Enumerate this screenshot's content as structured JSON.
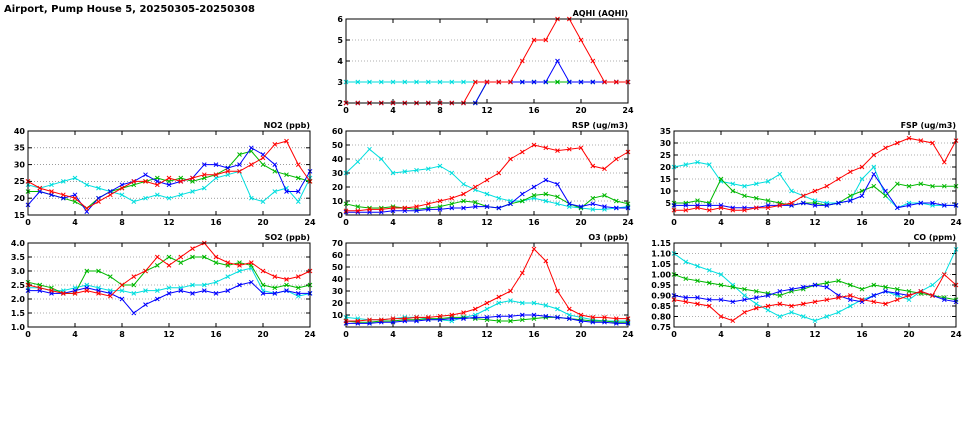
{
  "page_title": "Airport, Pump House 5, 20250305-20250308",
  "colors": {
    "red": "#ff0000",
    "green": "#00b800",
    "blue": "#0000ff",
    "cyan": "#00dede"
  },
  "chart_data": [
    {
      "id": "aqhi",
      "type": "line",
      "title": "AQHI (AQHI)",
      "x_start": 0,
      "x_end": 24,
      "x_ticks": [
        0,
        4,
        8,
        12,
        16,
        20,
        24
      ],
      "ylim": [
        2,
        6
      ],
      "y_ticks": [
        2,
        3,
        4,
        5,
        6
      ],
      "y_tick_labels": [
        "2",
        "3",
        "4",
        "5",
        "6"
      ],
      "grid": "horizontal-dotted",
      "legend": "none",
      "series": [
        {
          "name": "cyan",
          "color": "#00dede",
          "marker": "x",
          "values": [
            3,
            3,
            3,
            3,
            3,
            3,
            3,
            3,
            3,
            3,
            3,
            3,
            3,
            3,
            3,
            3,
            3,
            3,
            3,
            3,
            3,
            3,
            3,
            3,
            3
          ]
        },
        {
          "name": "green",
          "color": "#00b800",
          "marker": "x",
          "values": [
            2,
            2,
            2,
            2,
            2,
            2,
            2,
            2,
            2,
            2,
            2,
            2,
            3,
            3,
            3,
            3,
            3,
            3,
            3,
            3,
            3,
            3,
            3,
            3,
            3
          ]
        },
        {
          "name": "blue",
          "color": "#0000ff",
          "marker": "x",
          "values": [
            2,
            2,
            2,
            2,
            2,
            2,
            2,
            2,
            2,
            2,
            2,
            2,
            3,
            3,
            3,
            3,
            3,
            3,
            4,
            3,
            3,
            3,
            3,
            3,
            3
          ]
        },
        {
          "name": "red",
          "color": "#ff0000",
          "marker": "x",
          "values": [
            2,
            2,
            2,
            2,
            2,
            2,
            2,
            2,
            2,
            2,
            2,
            3,
            3,
            3,
            3,
            4,
            5,
            5,
            6,
            6,
            5,
            4,
            3,
            3,
            3
          ]
        }
      ]
    },
    {
      "id": "no2",
      "type": "line",
      "title": "NO2 (ppb)",
      "x_start": 0,
      "x_end": 24,
      "x_ticks": [
        0,
        4,
        8,
        12,
        16,
        20,
        24
      ],
      "ylim": [
        15,
        40
      ],
      "y_ticks": [
        15,
        20,
        25,
        30,
        35,
        40
      ],
      "y_tick_labels": [
        "15",
        "20",
        "25",
        "30",
        "35",
        "40"
      ],
      "grid": "horizontal-dotted",
      "legend": "none",
      "series": [
        {
          "name": "cyan",
          "color": "#00dede",
          "marker": "x",
          "values": [
            24,
            23,
            24,
            25,
            26,
            24,
            23,
            22,
            21,
            19,
            20,
            21,
            20,
            21,
            22,
            23,
            26,
            27,
            28,
            20,
            19,
            22,
            23,
            19,
            26
          ]
        },
        {
          "name": "green",
          "color": "#00b800",
          "marker": "x",
          "values": [
            22,
            22,
            21,
            20,
            19,
            17,
            20,
            22,
            23,
            24,
            25,
            26,
            25,
            26,
            25,
            26,
            27,
            29,
            33,
            34,
            30,
            28,
            27,
            26,
            25
          ]
        },
        {
          "name": "blue",
          "color": "#0000ff",
          "marker": "x",
          "values": [
            18,
            22,
            21,
            20,
            21,
            16,
            20,
            22,
            24,
            25,
            27,
            25,
            24,
            25,
            26,
            30,
            30,
            29,
            30,
            35,
            33,
            30,
            22,
            22,
            28
          ]
        },
        {
          "name": "red",
          "color": "#ff0000",
          "marker": "x",
          "values": [
            25,
            23,
            22,
            21,
            20,
            17,
            19,
            21,
            23,
            25,
            25,
            24,
            26,
            25,
            26,
            27,
            27,
            28,
            28,
            30,
            32,
            36,
            37,
            30,
            25
          ]
        }
      ]
    },
    {
      "id": "rsp",
      "type": "line",
      "title": "RSP (ug/m3)",
      "x_start": 0,
      "x_end": 24,
      "x_ticks": [
        0,
        4,
        8,
        12,
        16,
        20,
        24
      ],
      "ylim": [
        0,
        60
      ],
      "y_ticks": [
        0,
        10,
        20,
        30,
        40,
        50,
        60
      ],
      "y_tick_labels": [
        "0",
        "10",
        "20",
        "30",
        "40",
        "50",
        "60"
      ],
      "grid": "horizontal-dotted",
      "legend": "none",
      "series": [
        {
          "name": "cyan",
          "color": "#00dede",
          "marker": "x",
          "values": [
            30,
            38,
            47,
            40,
            30,
            31,
            32,
            33,
            35,
            30,
            22,
            18,
            15,
            12,
            10,
            10,
            12,
            10,
            8,
            6,
            5,
            4,
            4,
            5,
            6
          ]
        },
        {
          "name": "green",
          "color": "#00b800",
          "marker": "x",
          "values": [
            8,
            6,
            5,
            5,
            6,
            5,
            4,
            5,
            6,
            8,
            10,
            9,
            6,
            5,
            8,
            10,
            14,
            15,
            13,
            8,
            5,
            12,
            14,
            10,
            8
          ]
        },
        {
          "name": "blue",
          "color": "#0000ff",
          "marker": "x",
          "values": [
            2,
            2,
            2,
            2,
            3,
            3,
            3,
            4,
            4,
            5,
            5,
            6,
            6,
            5,
            8,
            15,
            20,
            25,
            22,
            8,
            6,
            8,
            6,
            5,
            5
          ]
        },
        {
          "name": "red",
          "color": "#ff0000",
          "marker": "x",
          "values": [
            3,
            3,
            4,
            4,
            5,
            5,
            6,
            8,
            10,
            12,
            15,
            20,
            25,
            30,
            40,
            45,
            50,
            48,
            46,
            47,
            48,
            35,
            33,
            40,
            45
          ]
        }
      ]
    },
    {
      "id": "fsp",
      "type": "line",
      "title": "FSP (ug/m3)",
      "x_start": 0,
      "x_end": 24,
      "x_ticks": [
        0,
        4,
        8,
        12,
        16,
        20,
        24
      ],
      "ylim": [
        0,
        35
      ],
      "y_ticks": [
        5,
        10,
        15,
        20,
        25,
        30,
        35
      ],
      "y_tick_labels": [
        "5",
        "10",
        "15",
        "20",
        "25",
        "30",
        "35"
      ],
      "grid": "horizontal-dotted",
      "legend": "none",
      "series": [
        {
          "name": "cyan",
          "color": "#00dede",
          "marker": "x",
          "values": [
            20,
            21,
            22,
            21,
            14,
            13,
            12,
            13,
            14,
            17,
            10,
            8,
            6,
            5,
            5,
            6,
            15,
            20,
            8,
            3,
            5,
            5,
            4,
            4,
            4
          ]
        },
        {
          "name": "green",
          "color": "#00b800",
          "marker": "x",
          "values": [
            5,
            5,
            6,
            5,
            15,
            10,
            8,
            7,
            6,
            5,
            4,
            5,
            5,
            4,
            5,
            8,
            10,
            12,
            8,
            13,
            12,
            13,
            12,
            12,
            12
          ]
        },
        {
          "name": "blue",
          "color": "#0000ff",
          "marker": "x",
          "values": [
            4,
            4,
            4,
            4,
            4,
            3,
            3,
            3,
            4,
            4,
            4,
            5,
            4,
            4,
            5,
            6,
            8,
            17,
            10,
            3,
            4,
            5,
            5,
            4,
            4
          ]
        },
        {
          "name": "red",
          "color": "#ff0000",
          "marker": "x",
          "values": [
            2,
            2,
            3,
            2,
            3,
            2,
            2,
            3,
            3,
            4,
            5,
            8,
            10,
            12,
            15,
            18,
            20,
            25,
            28,
            30,
            32,
            31,
            30,
            22,
            31
          ]
        }
      ]
    },
    {
      "id": "so2",
      "type": "line",
      "title": "SO2 (ppb)",
      "x_start": 0,
      "x_end": 24,
      "x_ticks": [
        0,
        4,
        8,
        12,
        16,
        20,
        24
      ],
      "ylim": [
        1.0,
        4.0
      ],
      "y_ticks": [
        1.0,
        1.5,
        2.0,
        2.5,
        3.0,
        3.5,
        4.0
      ],
      "y_tick_labels": [
        "1.0",
        "1.5",
        "2.0",
        "2.5",
        "3.0",
        "3.5",
        "4.0"
      ],
      "grid": "horizontal-dotted",
      "legend": "none",
      "series": [
        {
          "name": "cyan",
          "color": "#00dede",
          "marker": "x",
          "values": [
            2.4,
            2.4,
            2.3,
            2.3,
            2.4,
            2.5,
            2.4,
            2.3,
            2.3,
            2.2,
            2.3,
            2.3,
            2.4,
            2.4,
            2.5,
            2.5,
            2.6,
            2.8,
            3.0,
            3.1,
            2.3,
            2.2,
            2.3,
            2.1,
            2.2
          ]
        },
        {
          "name": "green",
          "color": "#00b800",
          "marker": "x",
          "values": [
            2.6,
            2.5,
            2.4,
            2.2,
            2.2,
            3.0,
            3.0,
            2.8,
            2.5,
            2.5,
            3.0,
            3.2,
            3.5,
            3.3,
            3.5,
            3.5,
            3.3,
            3.2,
            3.3,
            3.2,
            2.5,
            2.4,
            2.5,
            2.4,
            2.5
          ]
        },
        {
          "name": "blue",
          "color": "#0000ff",
          "marker": "x",
          "values": [
            2.3,
            2.3,
            2.2,
            2.2,
            2.3,
            2.4,
            2.3,
            2.2,
            2.0,
            1.5,
            1.8,
            2.0,
            2.2,
            2.3,
            2.2,
            2.3,
            2.2,
            2.3,
            2.5,
            2.6,
            2.2,
            2.2,
            2.3,
            2.2,
            2.2
          ]
        },
        {
          "name": "red",
          "color": "#ff0000",
          "marker": "x",
          "values": [
            2.5,
            2.4,
            2.3,
            2.2,
            2.2,
            2.3,
            2.2,
            2.1,
            2.5,
            2.8,
            3.0,
            3.5,
            3.2,
            3.5,
            3.8,
            4.0,
            3.5,
            3.3,
            3.2,
            3.3,
            3.0,
            2.8,
            2.7,
            2.8,
            3.0
          ]
        }
      ]
    },
    {
      "id": "o3",
      "type": "line",
      "title": "O3 (ppb)",
      "x_start": 0,
      "x_end": 24,
      "x_ticks": [
        0,
        4,
        8,
        12,
        16,
        20,
        24
      ],
      "ylim": [
        0,
        70
      ],
      "y_ticks": [
        10,
        20,
        30,
        40,
        50,
        60,
        70
      ],
      "y_tick_labels": [
        "10",
        "20",
        "30",
        "40",
        "50",
        "60",
        "70"
      ],
      "grid": "horizontal-dotted",
      "legend": "none",
      "series": [
        {
          "name": "cyan",
          "color": "#00dede",
          "marker": "x",
          "values": [
            8,
            7,
            6,
            6,
            7,
            8,
            8,
            7,
            6,
            5,
            8,
            10,
            15,
            20,
            22,
            20,
            20,
            18,
            15,
            10,
            8,
            6,
            5,
            5,
            5
          ]
        },
        {
          "name": "green",
          "color": "#00b800",
          "marker": "x",
          "values": [
            5,
            4,
            4,
            5,
            5,
            6,
            6,
            7,
            7,
            8,
            8,
            7,
            6,
            5,
            5,
            6,
            7,
            8,
            8,
            7,
            6,
            5,
            5,
            4,
            4
          ]
        },
        {
          "name": "blue",
          "color": "#0000ff",
          "marker": "x",
          "values": [
            3,
            3,
            3,
            4,
            4,
            5,
            5,
            6,
            6,
            7,
            7,
            8,
            8,
            9,
            9,
            10,
            10,
            9,
            8,
            7,
            5,
            4,
            4,
            3,
            3
          ]
        },
        {
          "name": "red",
          "color": "#ff0000",
          "marker": "x",
          "values": [
            5,
            5,
            6,
            6,
            7,
            7,
            8,
            8,
            9,
            10,
            12,
            15,
            20,
            25,
            30,
            45,
            65,
            55,
            30,
            15,
            10,
            8,
            8,
            7,
            7
          ]
        }
      ]
    },
    {
      "id": "co",
      "type": "line",
      "title": "CO (ppm)",
      "x_start": 0,
      "x_end": 24,
      "x_ticks": [
        0,
        4,
        8,
        12,
        16,
        20,
        24
      ],
      "ylim": [
        0.75,
        1.15
      ],
      "y_ticks": [
        0.75,
        0.8,
        0.85,
        0.9,
        0.95,
        1.0,
        1.05,
        1.1,
        1.15
      ],
      "y_tick_labels": [
        "0.75",
        "0.80",
        "0.85",
        "0.90",
        "0.95",
        "1.00",
        "1.05",
        "1.10",
        "1.15"
      ],
      "grid": "horizontal-dotted",
      "legend": "none",
      "series": [
        {
          "name": "cyan",
          "color": "#00dede",
          "marker": "x",
          "values": [
            1.1,
            1.06,
            1.04,
            1.02,
            1.0,
            0.95,
            0.9,
            0.86,
            0.83,
            0.8,
            0.82,
            0.8,
            0.78,
            0.8,
            0.82,
            0.85,
            0.88,
            0.9,
            0.92,
            0.9,
            0.88,
            0.92,
            0.95,
            1.0,
            1.12
          ]
        },
        {
          "name": "green",
          "color": "#00b800",
          "marker": "x",
          "values": [
            1.0,
            0.98,
            0.97,
            0.96,
            0.95,
            0.94,
            0.93,
            0.92,
            0.91,
            0.9,
            0.92,
            0.93,
            0.95,
            0.96,
            0.97,
            0.95,
            0.93,
            0.95,
            0.94,
            0.93,
            0.92,
            0.91,
            0.9,
            0.89,
            0.88
          ]
        },
        {
          "name": "blue",
          "color": "#0000ff",
          "marker": "x",
          "values": [
            0.9,
            0.89,
            0.89,
            0.88,
            0.88,
            0.87,
            0.88,
            0.89,
            0.9,
            0.92,
            0.93,
            0.94,
            0.95,
            0.94,
            0.9,
            0.88,
            0.87,
            0.9,
            0.92,
            0.91,
            0.9,
            0.92,
            0.9,
            0.88,
            0.87
          ]
        },
        {
          "name": "red",
          "color": "#ff0000",
          "marker": "x",
          "values": [
            0.88,
            0.87,
            0.86,
            0.85,
            0.8,
            0.78,
            0.82,
            0.84,
            0.85,
            0.86,
            0.85,
            0.86,
            0.87,
            0.88,
            0.89,
            0.9,
            0.88,
            0.87,
            0.86,
            0.88,
            0.9,
            0.92,
            0.9,
            1.0,
            0.95
          ]
        }
      ]
    }
  ]
}
